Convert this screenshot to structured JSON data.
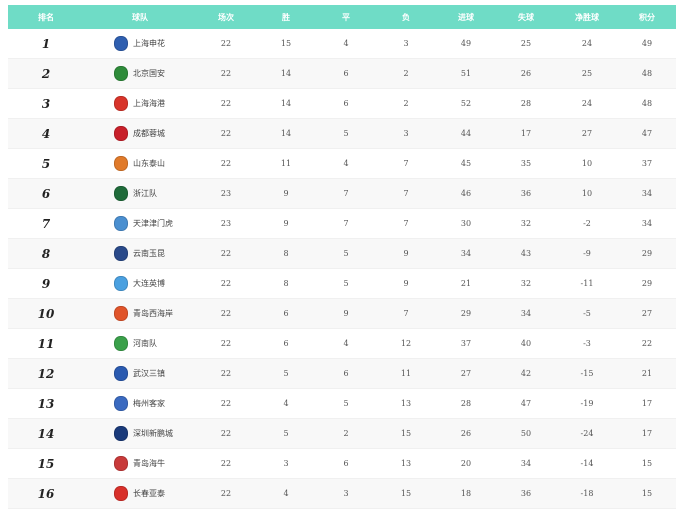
{
  "headers": [
    "排名",
    "球队",
    "场次",
    "胜",
    "平",
    "负",
    "进球",
    "失球",
    "净胜球",
    "积分"
  ],
  "rows": [
    {
      "rank": "1",
      "team": "上海申花",
      "logo_color": "#2f5fb0",
      "p": "22",
      "w": "15",
      "d": "4",
      "l": "3",
      "gf": "49",
      "ga": "25",
      "gd": "24",
      "pts": "49"
    },
    {
      "rank": "2",
      "team": "北京国安",
      "logo_color": "#2e8b3a",
      "p": "22",
      "w": "14",
      "d": "6",
      "l": "2",
      "gf": "51",
      "ga": "26",
      "gd": "25",
      "pts": "48"
    },
    {
      "rank": "3",
      "team": "上海海港",
      "logo_color": "#d8342a",
      "p": "22",
      "w": "14",
      "d": "6",
      "l": "2",
      "gf": "52",
      "ga": "28",
      "gd": "24",
      "pts": "48"
    },
    {
      "rank": "4",
      "team": "成都蓉城",
      "logo_color": "#c8202a",
      "p": "22",
      "w": "14",
      "d": "5",
      "l": "3",
      "gf": "44",
      "ga": "17",
      "gd": "27",
      "pts": "47"
    },
    {
      "rank": "5",
      "team": "山东泰山",
      "logo_color": "#e07a2a",
      "p": "22",
      "w": "11",
      "d": "4",
      "l": "7",
      "gf": "45",
      "ga": "35",
      "gd": "10",
      "pts": "37"
    },
    {
      "rank": "6",
      "team": "浙江队",
      "logo_color": "#1f6b3a",
      "p": "23",
      "w": "9",
      "d": "7",
      "l": "7",
      "gf": "46",
      "ga": "36",
      "gd": "10",
      "pts": "34"
    },
    {
      "rank": "7",
      "team": "天津津门虎",
      "logo_color": "#4a8fd0",
      "p": "23",
      "w": "9",
      "d": "7",
      "l": "7",
      "gf": "30",
      "ga": "32",
      "gd": "-2",
      "pts": "34"
    },
    {
      "rank": "8",
      "team": "云南玉昆",
      "logo_color": "#2a4a8a",
      "p": "22",
      "w": "8",
      "d": "5",
      "l": "9",
      "gf": "34",
      "ga": "43",
      "gd": "-9",
      "pts": "29"
    },
    {
      "rank": "9",
      "team": "大连英博",
      "logo_color": "#4aa0e0",
      "p": "22",
      "w": "8",
      "d": "5",
      "l": "9",
      "gf": "21",
      "ga": "32",
      "gd": "-11",
      "pts": "29"
    },
    {
      "rank": "10",
      "team": "青岛西海岸",
      "logo_color": "#e0542a",
      "p": "22",
      "w": "6",
      "d": "9",
      "l": "7",
      "gf": "29",
      "ga": "34",
      "gd": "-5",
      "pts": "27"
    },
    {
      "rank": "11",
      "team": "河南队",
      "logo_color": "#3aa04a",
      "p": "22",
      "w": "6",
      "d": "4",
      "l": "12",
      "gf": "37",
      "ga": "40",
      "gd": "-3",
      "pts": "22"
    },
    {
      "rank": "12",
      "team": "武汉三镇",
      "logo_color": "#2a5ab0",
      "p": "22",
      "w": "5",
      "d": "6",
      "l": "11",
      "gf": "27",
      "ga": "42",
      "gd": "-15",
      "pts": "21"
    },
    {
      "rank": "13",
      "team": "梅州客家",
      "logo_color": "#3a6ac0",
      "p": "22",
      "w": "4",
      "d": "5",
      "l": "13",
      "gf": "28",
      "ga": "47",
      "gd": "-19",
      "pts": "17"
    },
    {
      "rank": "14",
      "team": "深圳新鹏城",
      "logo_color": "#1a3a7a",
      "p": "22",
      "w": "5",
      "d": "2",
      "l": "15",
      "gf": "26",
      "ga": "50",
      "gd": "-24",
      "pts": "17"
    },
    {
      "rank": "15",
      "team": "青岛海牛",
      "logo_color": "#c83a3a",
      "p": "22",
      "w": "3",
      "d": "6",
      "l": "13",
      "gf": "20",
      "ga": "34",
      "gd": "-14",
      "pts": "15"
    },
    {
      "rank": "16",
      "team": "长春亚泰",
      "logo_color": "#d8302a",
      "p": "22",
      "w": "4",
      "d": "3",
      "l": "15",
      "gf": "18",
      "ga": "36",
      "gd": "-18",
      "pts": "15"
    }
  ],
  "colors": {
    "header_bg": "#6fdcc6",
    "alt_row": "#f8f8f8"
  }
}
